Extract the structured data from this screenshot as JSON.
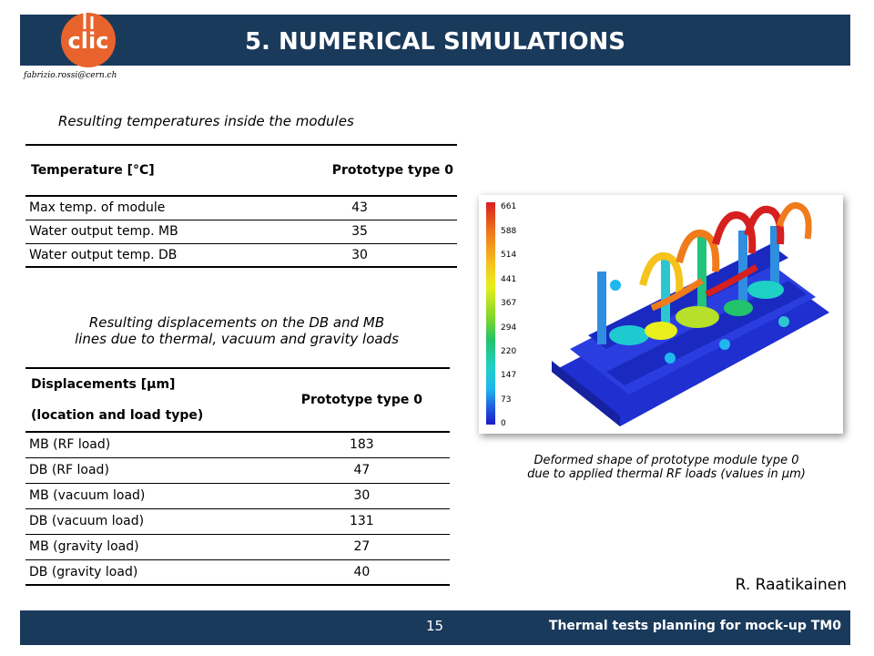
{
  "header": {
    "title": "5. NUMERICAL SIMULATIONS",
    "logo_text": "clic",
    "email": "fabrizio.rossi@cern.ch"
  },
  "temperatures": {
    "caption": "Resulting temperatures inside the modules",
    "headers": [
      "Temperature [°C]",
      "Prototype type 0"
    ],
    "rows": [
      [
        "Max temp. of module",
        "43"
      ],
      [
        "Water output temp. MB",
        "35"
      ],
      [
        "Water output temp. DB",
        "30"
      ]
    ]
  },
  "displacements": {
    "caption_line1": "Resulting displacements on the DB and MB",
    "caption_line2": "lines due to thermal, vacuum and gravity loads",
    "header_line1": "Displacements [μm]",
    "header_line2": "(location and load type)",
    "header_col2": "Prototype type 0",
    "rows": [
      [
        "MB (RF load)",
        "183"
      ],
      [
        "DB (RF load)",
        "47"
      ],
      [
        "MB (vacuum load)",
        "30"
      ],
      [
        "DB (vacuum load)",
        "131"
      ],
      [
        "MB (gravity load)",
        "27"
      ],
      [
        "DB (gravity load)",
        "40"
      ]
    ]
  },
  "figure": {
    "legend": [
      "661",
      "588",
      "514",
      "441",
      "367",
      "294",
      "220",
      "147",
      "73",
      "0"
    ],
    "caption_line1": "Deformed shape of prototype module type 0",
    "caption_line2": "due to applied thermal RF loads (values in μm)"
  },
  "author": "R. Raatikainen",
  "footer": {
    "page": "15",
    "text": "Thermal tests planning for mock-up TM0"
  },
  "colors": {
    "bar": "#1a3a5c",
    "logo": "#e8642c"
  }
}
